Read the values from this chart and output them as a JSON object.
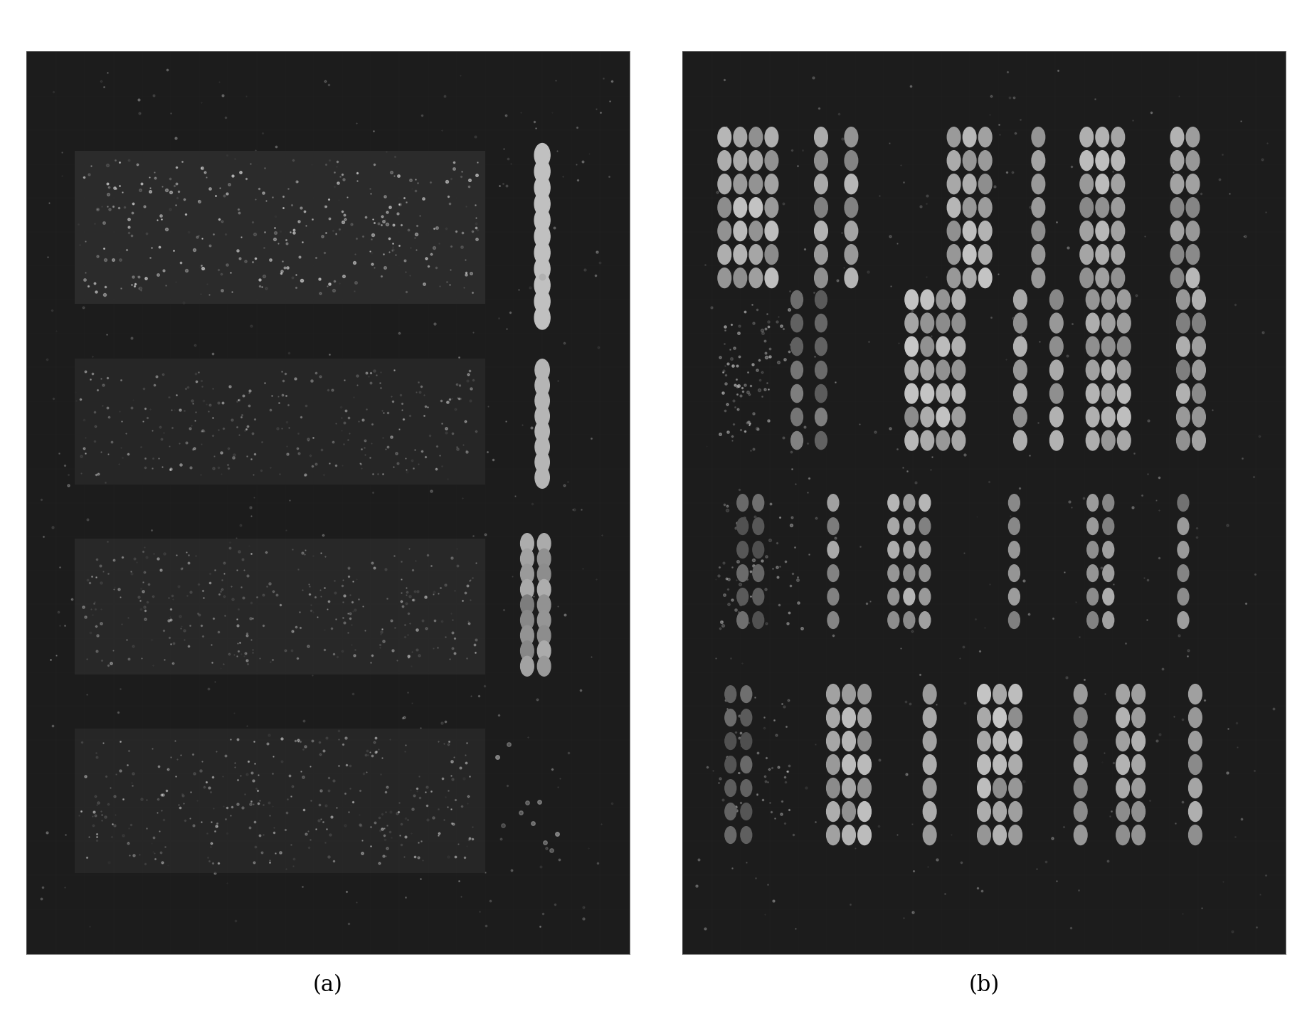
{
  "fig_width": 18.44,
  "fig_height": 14.42,
  "bg_color": "#1a1a1a",
  "panel_bg": "#2a2a2a",
  "label_a": "(a)",
  "label_b": "(b)",
  "label_fontsize": 22,
  "dot_color_bright": "#d8d8d8",
  "dot_color_mid": "#888888",
  "dot_color_dim": "#555555",
  "noise_color": "#444444"
}
